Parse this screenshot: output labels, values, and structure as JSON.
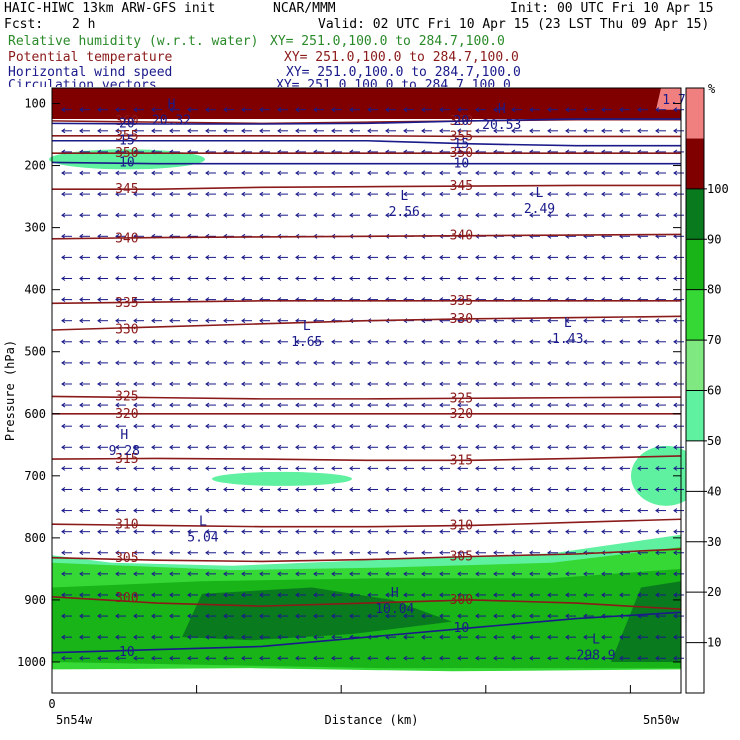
{
  "header": {
    "model": "HAIC-HIWC 13km ARW-GFS init",
    "org": "NCAR/MMM",
    "init": "Init: 00 UTC Fri 10 Apr 15",
    "fcst_label": "Fcst:",
    "fcst_value": "2 h",
    "valid": "Valid: 02 UTC Fri 10 Apr 15 (23 LST Thu 09 Apr 15)",
    "fields": [
      {
        "name": "Relative humidity (w.r.t. water)",
        "xy": "XY= 251.0,100.0 to 284.7,100.0",
        "color": "#2a8a2a"
      },
      {
        "name": "Potential temperature",
        "xy": "XY= 251.0,100.0 to 284.7,100.0",
        "color": "#8b1a1a"
      },
      {
        "name": "Horizontal wind speed",
        "xy": "XY= 251.0,100.0 to 284.7,100.0",
        "color": "#1a1a8a"
      },
      {
        "name": "Circulation vectors",
        "xy": "XY= 251.0,100.0 to 284.7,100.0",
        "color": "#1a1a8a"
      }
    ]
  },
  "chart_data": {
    "type": "cross-section",
    "ylabel": "Pressure (hPa)",
    "xlabel": "Distance (km)",
    "x_start_label": "5n54w",
    "x_end_label": "5n50w",
    "x_zero_label": "0",
    "y_ticks": [
      100,
      200,
      300,
      400,
      500,
      600,
      700,
      800,
      900,
      1000
    ],
    "ylim": [
      1050,
      75
    ],
    "colorbar": {
      "unit": "%",
      "levels": [
        10,
        20,
        30,
        40,
        50,
        60,
        70,
        80,
        90,
        100
      ],
      "bands": [
        {
          "from": 0,
          "to": 50,
          "color": "#ffffff"
        },
        {
          "from": 50,
          "to": 60,
          "color": "#5ff0a0"
        },
        {
          "from": 60,
          "to": 70,
          "color": "#80e880"
        },
        {
          "from": 70,
          "to": 80,
          "color": "#35d835"
        },
        {
          "from": 80,
          "to": 90,
          "color": "#18b418"
        },
        {
          "from": 90,
          "to": 100,
          "color": "#0a7a1e"
        },
        {
          "from": 100,
          "to": 110,
          "color": "#800000"
        },
        {
          "from": 110,
          "to": 120,
          "color": "#f08080"
        }
      ]
    },
    "theta_contours": [
      {
        "value": 300,
        "label": "300",
        "p": [
          895,
          905,
          910,
          905,
          900,
          905,
          915
        ]
      },
      {
        "value": 305,
        "label": "305",
        "p": [
          832,
          836,
          838,
          835,
          830,
          826,
          818
        ]
      },
      {
        "value": 310,
        "label": "310",
        "p": [
          778,
          780,
          782,
          782,
          780,
          775,
          770
        ]
      },
      {
        "value": 315,
        "label": "315",
        "p": [
          673,
          672,
          673,
          675,
          675,
          672,
          668
        ]
      },
      {
        "value": 320,
        "label": "320",
        "p": [
          600,
          600,
          600,
          600,
          600,
          600,
          600
        ]
      },
      {
        "value": 325,
        "label": "325",
        "p": [
          572,
          574,
          576,
          576,
          575,
          574,
          573
        ]
      },
      {
        "value": 330,
        "label": "330",
        "p": [
          465,
          460,
          455,
          450,
          447,
          445,
          443
        ]
      },
      {
        "value": 335,
        "label": "335",
        "p": [
          422,
          420,
          418,
          418,
          418,
          418,
          418
        ]
      },
      {
        "value": 340,
        "label": "340",
        "p": [
          318,
          316,
          315,
          314,
          313,
          312,
          311
        ]
      },
      {
        "value": 345,
        "label": "345",
        "p": [
          238,
          238,
          235,
          234,
          233,
          232,
          232
        ]
      },
      {
        "value": 350,
        "label": "350",
        "p": [
          180,
          180,
          180,
          180,
          180,
          180,
          180
        ]
      },
      {
        "value": 355,
        "label": "355",
        "p": [
          152,
          152,
          152,
          152,
          153,
          153,
          153
        ]
      },
      {
        "value": 360,
        "label": "360",
        "p": [
          128,
          130,
          132,
          130,
          128,
          126,
          126
        ]
      }
    ],
    "wind_contours": [
      {
        "value": 10,
        "label": "10",
        "p": [
          985,
          980,
          975,
          960,
          945,
          930,
          920
        ]
      },
      {
        "value": 10,
        "label": "10",
        "p": [
          195,
          197,
          197,
          197,
          197,
          197,
          197
        ]
      },
      {
        "value": 15,
        "label": "15",
        "p": [
          160,
          160,
          160,
          160,
          165,
          168,
          168
        ]
      },
      {
        "value": 20,
        "label": "20",
        "p": [
          132,
          133,
          133,
          132,
          128,
          125,
          125
        ]
      }
    ],
    "extrema": [
      {
        "kind": "H",
        "value": "20.32",
        "x_frac": 0.38,
        "p": 118
      },
      {
        "kind": "H",
        "value": "20.53",
        "x_frac": 1.43,
        "p": 125
      },
      {
        "kind": "L",
        "value": "2.56",
        "x_frac": 1.12,
        "p": 265
      },
      {
        "kind": "L",
        "value": "2.49",
        "x_frac": 1.55,
        "p": 260
      },
      {
        "kind": "L",
        "value": "1.65",
        "x_frac": 0.81,
        "p": 475
      },
      {
        "kind": "L",
        "value": "1.43",
        "x_frac": 1.64,
        "p": 470
      },
      {
        "kind": "H",
        "value": "9.28",
        "x_frac": 0.23,
        "p": 650
      },
      {
        "kind": "L",
        "value": "5.04",
        "x_frac": 0.48,
        "p": 790
      },
      {
        "kind": "H",
        "value": "10.04",
        "x_frac": 1.09,
        "p": 905
      },
      {
        "kind": "L",
        "value": "298.9",
        "x_frac": 1.73,
        "p": 980
      },
      {
        "kind": "",
        "value": "1.72",
        "x_frac": 1.99,
        "p": 85
      }
    ]
  }
}
